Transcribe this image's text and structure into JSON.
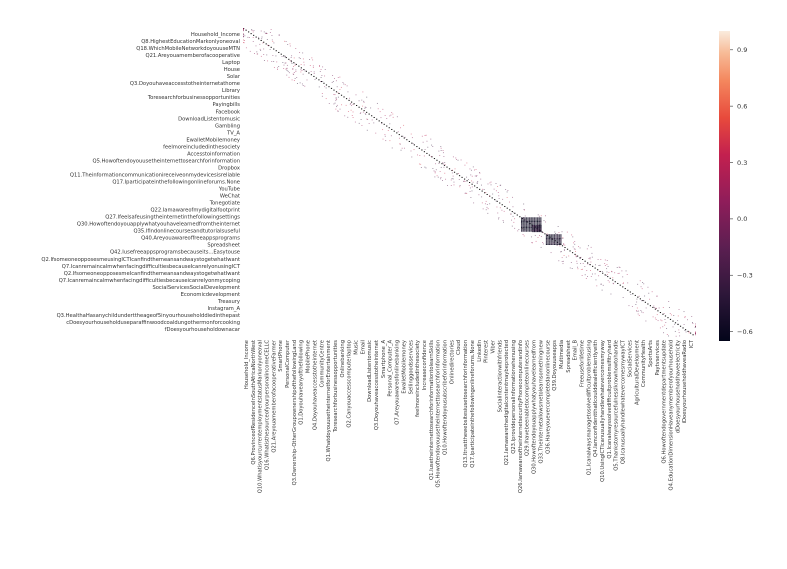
{
  "chart_data": {
    "type": "heatmap",
    "title": "",
    "xlabel": "",
    "ylabel": "",
    "variables": [
      "Household_Income",
      "Q6.ProvinceofResidenceInSouthAfricaNorthWest",
      "Q8.HighestEducationMarkonlyoneoval",
      "Q10.WhatisyourcurrentemploymentstatusMarkonlyoneoval",
      "Q18.WhichMobileNetworkdoyouuseMTN",
      "Q16.WhatisthesourceofyourpersonalincomeCELLC",
      "Q21.AreyouamemberofacooperativeFarmer",
      "SmartPhone",
      "Laptop",
      "PersonalComputer",
      "House",
      "Q3.Ownership-OtherGroupownershipofthefollowingLand",
      "Solar",
      "Q1.Doyouhaveanyofthefollowing",
      "Q3.Doyouhaveaccesstotheinternetathome",
      "MobilePhone",
      "Library",
      "Q4.Doyouhaveaccesstotheinternet",
      "Toresearchforbusinessopportunities",
      "CommunityCentre",
      "Payingbills",
      "Q1.WhatdoyouusetheinternetforEntertainment",
      "Facebook",
      "Toresearchforbusinessopportunities",
      "DownloadListentomusic",
      "Onlinebanking",
      "Gambling",
      "Q2.Canyouaccesscomputerlaptop",
      "TV_A",
      "Music",
      "EwalletMobilemoney",
      "Email",
      "feelmoreincludedinthesociety",
      "DownloadListentomusic",
      "Accesstoinformation",
      "Q5.Howoftendoyouusetheinternettosearchforinformation",
      "Dropbox",
      "Smartphone_A",
      "Q11.Theinformationcommunicationireceiveonmydevicesisreliable",
      "Q17.Iparticipateinthefollowingonlineforums.None",
      "YouTube",
      "WeChat",
      "Tonegotiate",
      "Q27.Ifeelsafeusingtheinternetinthefollowingsettings",
      "Q22.Iamawareofmydigitalfootprint",
      "Q30.Howoftendoyouapplywhatyouhavelearnedfromtheinternet",
      "Q35.Ifindonlinecoursesandtutorialsuseful",
      "Q40.Areyouawareoffreeappsprograms",
      "Spreadsheet",
      "Q42.Iusefreeappsprogramsbecauseits...Easytouse",
      "Q2.IfsomeoneopposesmeusingICTIcanfindthemeansandwaystogetwhatIwant",
      "Q7.IcanremaincalmwhenfacingdifficultiesbecauseIcanrelyonusingICT",
      "Q2.IfsomeoneopposesmeIcanfindthemeansandwaystogetwhatIwant",
      "Q7.Icanremaincalmwhenfacingdifficultiesbecauseicanrelyonmycopingabilities",
      "SocialServicesSocialDevelopment",
      "Economicdevelopment",
      "Treasury",
      "Instagram_A",
      "Q3.HealthaHasanychildunderttheageof5inyourhouseholddiedinthepast12months",
      "cDoesyourhouseholduseparaffinwoodcoaldungothermonforcooking",
      "fDoesyourhouseholdownacar",
      "ICT"
    ],
    "y_tick_labels": [
      "Household_Income",
      "Q8.HighestEducationMarkonlyoneoval",
      "Q18.WhichMobileNetworkdoyouuseMTN",
      "Q21.Areyouamemberofacooperative",
      "Laptop",
      "House",
      "Solar",
      "Q3.Doyouhaveaccesstotheinternetathome",
      "Library",
      "Toresearchforbusinessopportunities",
      "Payingbills",
      "Facebook",
      "DownloadListentomusic",
      "Gambling",
      "TV_A",
      "EwalletMobilemoney",
      "feelmoreincludedinthesociety",
      "Accesstoinformation",
      "Q5.Howoftendoyouusetheinternettosearchforinformation",
      "Dropbox",
      "Q11.Theinformationcommunicationireceiveonmydevicesisreliable",
      "Q17.Iparticipateinthefollowingonlineforums.None",
      "YouTube",
      "WeChat",
      "Tonegotiate",
      "Q22.Iamawareofmydigitalfootprint",
      "Q27.Ifeelsafeusingtheinternetinthefollowingsettings",
      "Q30.Howoftendoyouapplywhatyouhavelearnedfromtheinternet",
      "Q35.Ifindonlinecoursesandtutorialsuseful",
      "Q40.Areyouawareoffreeappsprograms",
      "Spreadsheet",
      "Q42.Iusefreeappsprogramsbecauseits...Easytouse",
      "Q2.IfsomeoneopposesmeusingICTIcanfindthemeansandwaystogetwhatIwant",
      "Q7.IcanremaincalmwhenfacingdifficultiesbecauseIcanrelyonusingICT",
      "Q2.IfsomeoneopposesmeIcanfindthemeansandwaystogetwhatIwant",
      "Q7.Icanremaincalmwhenfacingdifficultiesbecauseicanrelyonmycoping",
      "SocialServicesSocialDevelopment",
      "Economicdevelopment",
      "Treasury",
      "Instagram_A",
      "Q3.HealthaHasanychildunderttheageof5inyourhouseholddiedinthepast",
      "cDoesyourhouseholduseparaffinwoodcoaldungothermonforcooking",
      "fDoesyourhouseholdownacar"
    ],
    "x_tick_labels": [
      "Household_Income",
      "Q6.ProvinceofResidenceInSouthAfricaNorthWest",
      "Q10.WhatisyourcurrentemploymentstatusMarkonlyoneoval",
      "Q16.WhatisthesourceofyourpersonalincomeCELLC",
      "Q21.AreyouamemberofacooperativeFarmer",
      "SmartPhone",
      "PersonalComputer",
      "Q3.Ownership-OtherGroupownershipofthefollowingLand",
      "Q1.Doyouhaveanyofthefollowing",
      "MobilePhone",
      "Q4.Doyouhaveaccesstotheinternet",
      "CommunityCentre",
      "Q1.WhatdoyouusetheinternetforEntertainment",
      "Toresearchforbusinessopportunities",
      "Onlinebanking",
      "Q2.Canyouaccesscomputerlaptop",
      "Music",
      "Email",
      "DownloadListentomusic",
      "Q3.Doyouhaveaccesstotheinternet",
      "Smartphone_A",
      "Personal_Computer_A",
      "Q7.Areyouawareofonlinebanking",
      "EwalletMobilemoney",
      "Sellinggoodsservices",
      "feelmoreincludedinthesociety",
      "Increaseconfidence",
      "Q1.IusetheinternettosearchforinformationtolearnSkills",
      "Q5.Howoftendoyouusetheinternettosearchforinformation",
      "Q10.Howoftendoyousubscribeforinformation",
      "Onlinedirectories",
      "Cloud",
      "Q13.Itrustthewebsitesiusetosearchforinformation",
      "Q17.Iparticipateinthefollowingonlineforums.None",
      "LinkedIn",
      "Pinterest",
      "Viber",
      "Socialinteractionwithfriends",
      "Q21.Iamawarethedigitalcontentmaybeprotected",
      "Q23.Iprovidepersonalinformationwhenusing",
      "Q26.IamawareoftheinternetsecurityPhonecomputerandinfo",
      "Q29.Ihavebeenabletocompleteonlinecourses",
      "Q30.Howoftendoyouapplywhatyouhavelearnedfrom",
      "Q33.Theinternetallowsmetolearnsomethingnew",
      "Q36.Haveyouevercompletedanonlinecourse",
      "Q39.Doyouuseapps",
      "Multimedia",
      "Spreadsheet",
      "Email_B",
      "Freeuseforlifetime",
      "Q1.Icanalwaysmanagetosolvedifficultproblemsusing",
      "Q4.IamconfidentthatIcoulddealefficientlywith",
      "Q10.UsingICTIcanusuallyhandlewhatevercomesmyway",
      "Q1.Icanalwayssolvedifficultproblemsifitryhard",
      "Q5.ThankstomyresourcefulnessIknowhowtohandle",
      "Q8.IcanusuallyhandlewhatevercomesmywayICT",
      "SocialServices",
      "AgriculturalDevelopment",
      "CommunityHealth",
      "SportsArts",
      "Paytvservices",
      "Q6.Howoftendogovernmentdepartmentsupdate",
      "Q4.EducationDimensionHaveanymemberofyourhousehold",
      "dDoesyourhouseholdhaveelectricity",
      "iDoesyourhouseholdhaveaRadio",
      "ICT"
    ],
    "colorbar": {
      "colormap": "rocket",
      "vmin": -0.65,
      "vmax": 1.0,
      "ticks": [
        0.9,
        0.6,
        0.3,
        0.0,
        -0.3,
        -0.6
      ],
      "tick_labels": [
        "0.9",
        "0.6",
        "0.3",
        "0.0",
        "−0.3",
        "−0.6"
      ]
    },
    "notable_blocks": [
      {
        "row_range": [
          0.615,
          0.66
        ],
        "col_range": [
          0.615,
          0.66
        ],
        "value": -0.6
      },
      {
        "row_range": [
          0.67,
          0.705
        ],
        "col_range": [
          0.67,
          0.705
        ],
        "value": -0.55
      },
      {
        "row_range": [
          0.64,
          0.66
        ],
        "col_range": [
          0.64,
          0.66
        ],
        "value": -0.45
      }
    ],
    "colors": {
      "background": "#ffffff",
      "diagonal": "#111111",
      "positive_light": "#fae6d6",
      "negative_dark": "#1a0a1e"
    }
  }
}
